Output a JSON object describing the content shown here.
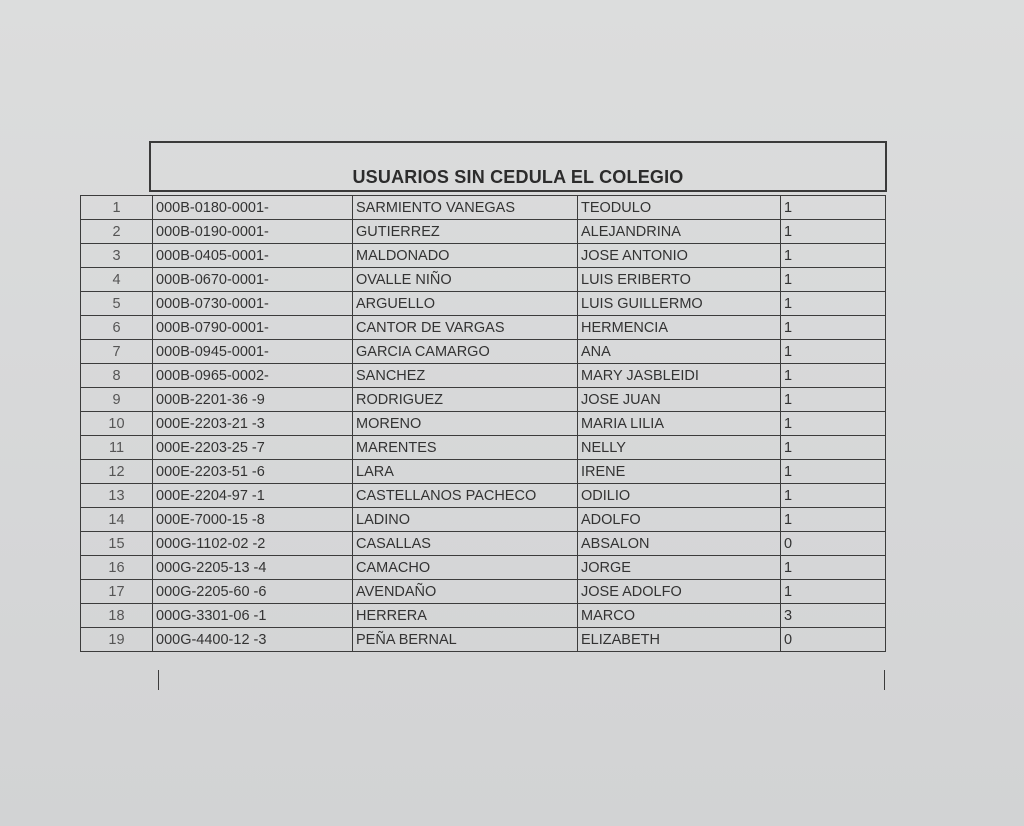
{
  "document": {
    "title": "USUARIOS SIN CEDULA EL COLEGIO",
    "rows": [
      {
        "num": "1",
        "code": "000B-0180-0001-",
        "surname": "SARMIENTO VANEGAS",
        "name": "TEODULO",
        "value": "1"
      },
      {
        "num": "2",
        "code": "000B-0190-0001-",
        "surname": "GUTIERREZ",
        "name": "ALEJANDRINA",
        "value": "1"
      },
      {
        "num": "3",
        "code": "000B-0405-0001-",
        "surname": "MALDONADO",
        "name": "JOSE ANTONIO",
        "value": "1"
      },
      {
        "num": "4",
        "code": "000B-0670-0001-",
        "surname": "OVALLE NIÑO",
        "name": "LUIS ERIBERTO",
        "value": "1"
      },
      {
        "num": "5",
        "code": "000B-0730-0001-",
        "surname": "ARGUELLO",
        "name": "LUIS GUILLERMO",
        "value": "1"
      },
      {
        "num": "6",
        "code": "000B-0790-0001-",
        "surname": "CANTOR DE  VARGAS",
        "name": "HERMENCIA",
        "value": "1"
      },
      {
        "num": "7",
        "code": "000B-0945-0001-",
        "surname": "GARCIA CAMARGO",
        "name": "ANA",
        "value": "1"
      },
      {
        "num": "8",
        "code": "000B-0965-0002-",
        "surname": "SANCHEZ",
        "name": "MARY JASBLEIDI",
        "value": "1"
      },
      {
        "num": "9",
        "code": "000B-2201-36 -9",
        "surname": "RODRIGUEZ",
        "name": "JOSE JUAN",
        "value": "1"
      },
      {
        "num": "10",
        "code": "000E-2203-21 -3",
        "surname": "MORENO",
        "name": "MARIA LILIA",
        "value": "1"
      },
      {
        "num": "11",
        "code": "000E-2203-25 -7",
        "surname": "MARENTES",
        "name": "NELLY",
        "value": "1"
      },
      {
        "num": "12",
        "code": "000E-2203-51 -6",
        "surname": "LARA",
        "name": "IRENE",
        "value": "1"
      },
      {
        "num": "13",
        "code": "000E-2204-97 -1",
        "surname": "CASTELLANOS PACHECO",
        "name": "ODILIO",
        "value": "1"
      },
      {
        "num": "14",
        "code": "000E-7000-15 -8",
        "surname": "LADINO",
        "name": "ADOLFO",
        "value": "1"
      },
      {
        "num": "15",
        "code": "000G-1102-02 -2",
        "surname": "CASALLAS",
        "name": "ABSALON",
        "value": "0"
      },
      {
        "num": "16",
        "code": "000G-2205-13 -4",
        "surname": "CAMACHO",
        "name": "JORGE",
        "value": "1"
      },
      {
        "num": "17",
        "code": "000G-2205-60 -6",
        "surname": "AVENDAÑO",
        "name": "JOSE ADOLFO",
        "value": "1"
      },
      {
        "num": "18",
        "code": "000G-3301-06 -1",
        "surname": "HERRERA",
        "name": "MARCO",
        "value": "3"
      },
      {
        "num": "19",
        "code": "000G-4400-12 -3",
        "surname": "PEÑA BERNAL",
        "name": "ELIZABETH",
        "value": "0"
      }
    ]
  }
}
